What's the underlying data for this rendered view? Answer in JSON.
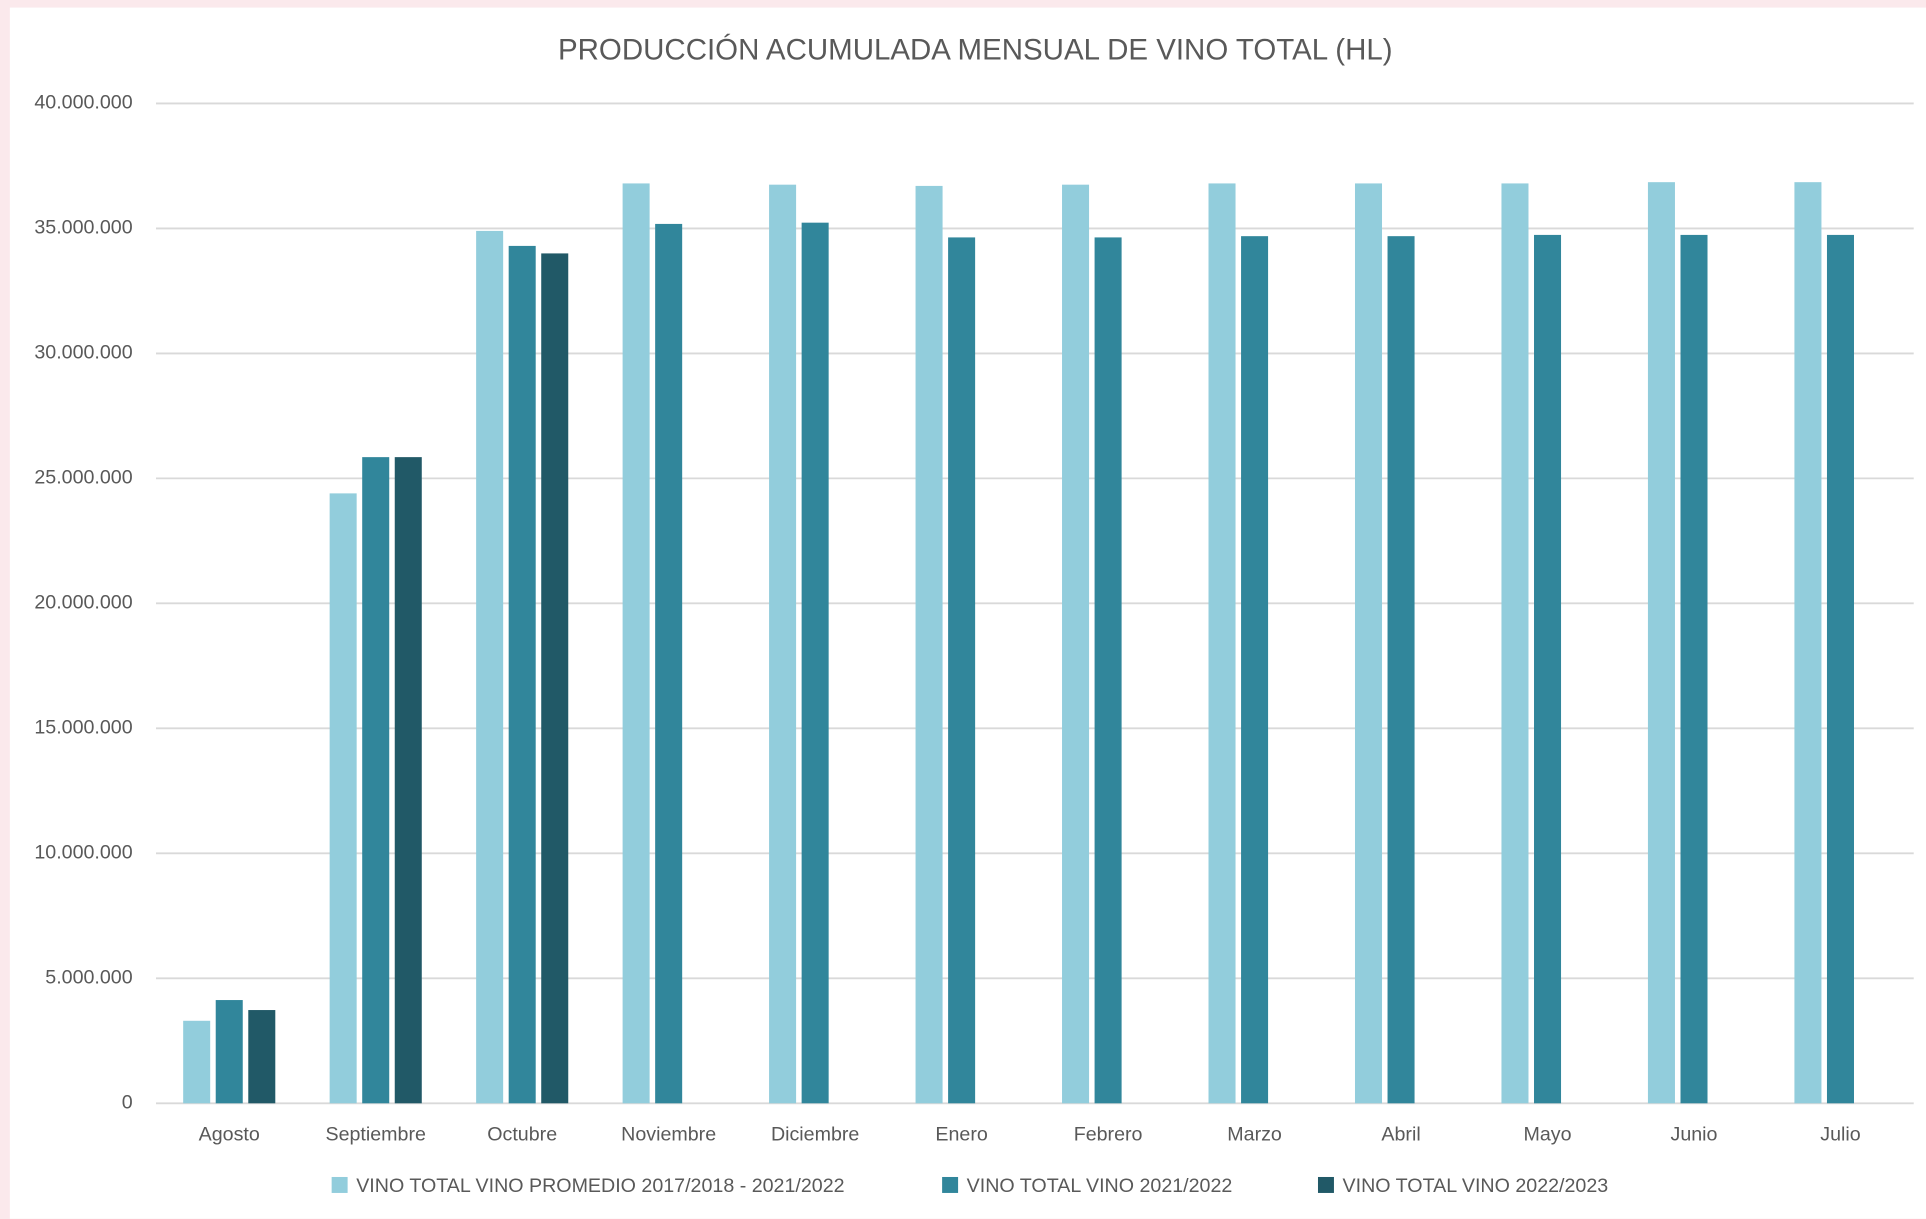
{
  "chart_data": {
    "type": "bar",
    "title": "PRODUCCIÓN ACUMULADA MENSUAL DE VINO TOTAL (HL)",
    "categories": [
      "Agosto",
      "Septiembre",
      "Octubre",
      "Noviembre",
      "Diciembre",
      "Enero",
      "Febrero",
      "Marzo",
      "Abril",
      "Mayo",
      "Junio",
      "Julio"
    ],
    "series": [
      {
        "name": "VINO  TOTAL VINO PROMEDIO 2017/2018 - 2021/2022",
        "color": "#92cddc",
        "values": [
          3300000,
          24400000,
          34900000,
          36800000,
          36750000,
          36700000,
          36750000,
          36800000,
          36800000,
          36800000,
          36850000,
          36850000
        ]
      },
      {
        "name": "VINO  TOTAL VINO 2021/2022",
        "color": "#31869b",
        "values": [
          4130000,
          25850000,
          34300000,
          35180000,
          35230000,
          34640000,
          34640000,
          34690000,
          34690000,
          34740000,
          34740000,
          34740000
        ]
      },
      {
        "name": "VINO  TOTAL VINO 2022/2023",
        "color": "#215967",
        "values": [
          3730000,
          25850000,
          34000000,
          null,
          null,
          null,
          null,
          null,
          null,
          null,
          null,
          null
        ]
      }
    ],
    "ylim": [
      0,
      40000000
    ],
    "yticks": [
      0,
      {
        "value": 5000000,
        "label": "5.000.000"
      },
      {
        "value": 10000000,
        "label": "10.000.000"
      },
      {
        "value": 15000000,
        "label": "15.000.000"
      },
      {
        "value": 20000000,
        "label": "20.000.000"
      },
      {
        "value": 25000000,
        "label": "25.000.000"
      },
      {
        "value": 30000000,
        "label": "30.000.000"
      },
      {
        "value": 35000000,
        "label": "35.000.000"
      },
      {
        "value": 40000000,
        "label": "40.000.000"
      }
    ],
    "grid": true,
    "legend": "bottom"
  }
}
